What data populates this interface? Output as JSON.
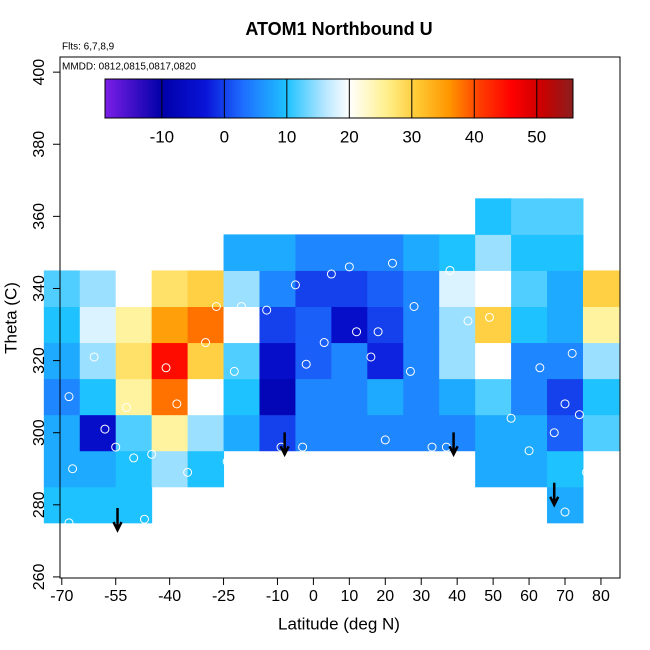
{
  "chart_data": {
    "type": "heatmap",
    "title": "ATOM1 Northbound U",
    "annotations": [
      "Flts: 6,7,8,9",
      "MMDD: 0812,0815,0817,0820"
    ],
    "x_label": "Latitude (deg N)",
    "y_label": "Theta (C)",
    "xlim": [
      -70.5,
      85.3
    ],
    "ylim": [
      259.7,
      404.2
    ],
    "xticks": [
      -70,
      -55,
      -40,
      -25,
      -10,
      0,
      10,
      20,
      30,
      40,
      50,
      60,
      70,
      80
    ],
    "yticks": [
      260,
      280,
      300,
      320,
      340,
      360,
      380,
      400
    ],
    "x": [
      -70,
      -60,
      -50,
      -40,
      -30,
      -20,
      -10,
      0,
      10,
      20,
      30,
      40,
      50,
      60,
      70,
      80
    ],
    "y": [
      280,
      290,
      300,
      310,
      320,
      330,
      340,
      350,
      360
    ],
    "cell_width": 10,
    "cell_height": 10,
    "z": [
      [
        10,
        10,
        10,
        null,
        null,
        null,
        null,
        null,
        null,
        null,
        null,
        null,
        null,
        null,
        8,
        null
      ],
      [
        8,
        8,
        10,
        15,
        10,
        null,
        null,
        null,
        null,
        null,
        null,
        null,
        8,
        8,
        10,
        null
      ],
      [
        8,
        -5,
        12,
        25,
        15,
        8,
        0,
        5,
        5,
        5,
        5,
        5,
        8,
        8,
        2,
        12
      ],
      [
        5,
        10,
        25,
        38,
        20,
        10,
        -8,
        5,
        5,
        8,
        5,
        8,
        12,
        5,
        0,
        10
      ],
      [
        8,
        15,
        28,
        45,
        30,
        12,
        -5,
        2,
        5,
        -2,
        5,
        15,
        20,
        5,
        5,
        15
      ],
      [
        10,
        18,
        25,
        35,
        38,
        20,
        0,
        2,
        -5,
        0,
        5,
        15,
        30,
        10,
        8,
        25
      ],
      [
        12,
        15,
        20,
        28,
        30,
        15,
        5,
        0,
        0,
        2,
        5,
        18,
        20,
        12,
        8,
        30
      ],
      [
        null,
        null,
        null,
        null,
        null,
        8,
        8,
        5,
        5,
        5,
        8,
        10,
        15,
        10,
        10,
        null
      ],
      [
        null,
        null,
        null,
        null,
        null,
        null,
        null,
        null,
        null,
        null,
        null,
        null,
        10,
        12,
        12,
        null
      ]
    ],
    "colorbar": {
      "lim": [
        -19.1,
        55.8
      ],
      "ticks": [
        -10,
        0,
        10,
        20,
        30,
        40,
        50
      ],
      "stops": [
        {
          "value": -19,
          "color": "#7a1ee6"
        },
        {
          "value": -10,
          "color": "#0000a8"
        },
        {
          "value": -3,
          "color": "#0a14d8"
        },
        {
          "value": 3,
          "color": "#1e6eff"
        },
        {
          "value": 10,
          "color": "#1ec2ff"
        },
        {
          "value": 16,
          "color": "#b4e6ff"
        },
        {
          "value": 20,
          "color": "#ffffff"
        },
        {
          "value": 26,
          "color": "#fff08c"
        },
        {
          "value": 31,
          "color": "#ffc832"
        },
        {
          "value": 36,
          "color": "#ff9600"
        },
        {
          "value": 41,
          "color": "#ff3c00"
        },
        {
          "value": 46,
          "color": "#ff0000"
        },
        {
          "value": 51,
          "color": "#c80000"
        },
        {
          "value": 55.8,
          "color": "#8c1e1e"
        }
      ]
    },
    "points": {
      "x": [
        -68,
        -67,
        -68,
        -61,
        -58,
        -55,
        -52,
        -50,
        -47,
        -45,
        -41,
        -38,
        -35,
        -30,
        -27,
        -24,
        -22,
        -20,
        -13,
        -9,
        -5,
        -2,
        3,
        5,
        10,
        12,
        18,
        20,
        22,
        27,
        28,
        33,
        37,
        38,
        43,
        49,
        52,
        55,
        60,
        63,
        67,
        70,
        72,
        74,
        76,
        79,
        70,
        -3,
        16
      ],
      "y": [
        310,
        290,
        275,
        321,
        301,
        296,
        307,
        293,
        276,
        294,
        318,
        308,
        289,
        325,
        335,
        292,
        317,
        335,
        334,
        296,
        341,
        319,
        325,
        344,
        346,
        328,
        328,
        298,
        347,
        317,
        335,
        296,
        296,
        345,
        331,
        332,
        319,
        304,
        295,
        318,
        300,
        308,
        322,
        305,
        289,
        277,
        278,
        296,
        321
      ]
    },
    "arrows": {
      "x": [
        -54.5,
        -8,
        39,
        67
      ],
      "y": [
        273,
        294,
        294,
        280
      ]
    }
  }
}
